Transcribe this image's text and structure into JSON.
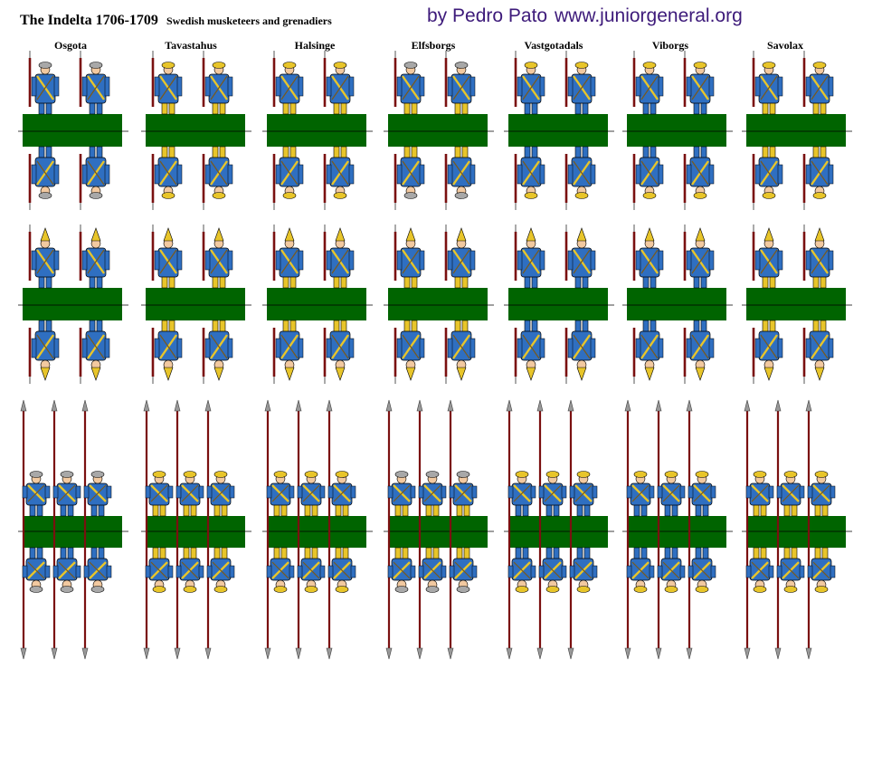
{
  "header": {
    "title": "The Indelta 1706-1709",
    "subtitle": "Swedish musketeers and grenadiers",
    "credit": "by Pedro Pato",
    "url": "www.juniorgeneral.org"
  },
  "regiments": [
    {
      "name": "Osgota",
      "hat_color": "#a8a8a8",
      "breeches_color": "#2f6fc1"
    },
    {
      "name": "Tavastahus",
      "hat_color": "#e8c52a",
      "breeches_color": "#e8c52a"
    },
    {
      "name": "Halsinge",
      "hat_color": "#e8c52a",
      "breeches_color": "#e8c52a"
    },
    {
      "name": "Elfsborgs",
      "hat_color": "#a8a8a8",
      "breeches_color": "#e8c52a"
    },
    {
      "name": "Vastgotadals",
      "hat_color": "#e8c52a",
      "breeches_color": "#2f6fc1"
    },
    {
      "name": "Viborgs",
      "hat_color": "#e8c52a",
      "breeches_color": "#2f6fc1"
    },
    {
      "name": "Savolax",
      "hat_color": "#e8c52a",
      "breeches_color": "#e8c52a"
    }
  ],
  "colors": {
    "coat": "#2f6fc1",
    "facings": "#e8c52a",
    "base": "#006400",
    "musket": "#7a1010",
    "skin": "#f2c9a0"
  },
  "rows": [
    {
      "kind": "musketeers",
      "figures_per_base": 2
    },
    {
      "kind": "grenadiers",
      "figures_per_base": 2
    },
    {
      "kind": "pikemen",
      "figures_per_base": 3
    }
  ]
}
